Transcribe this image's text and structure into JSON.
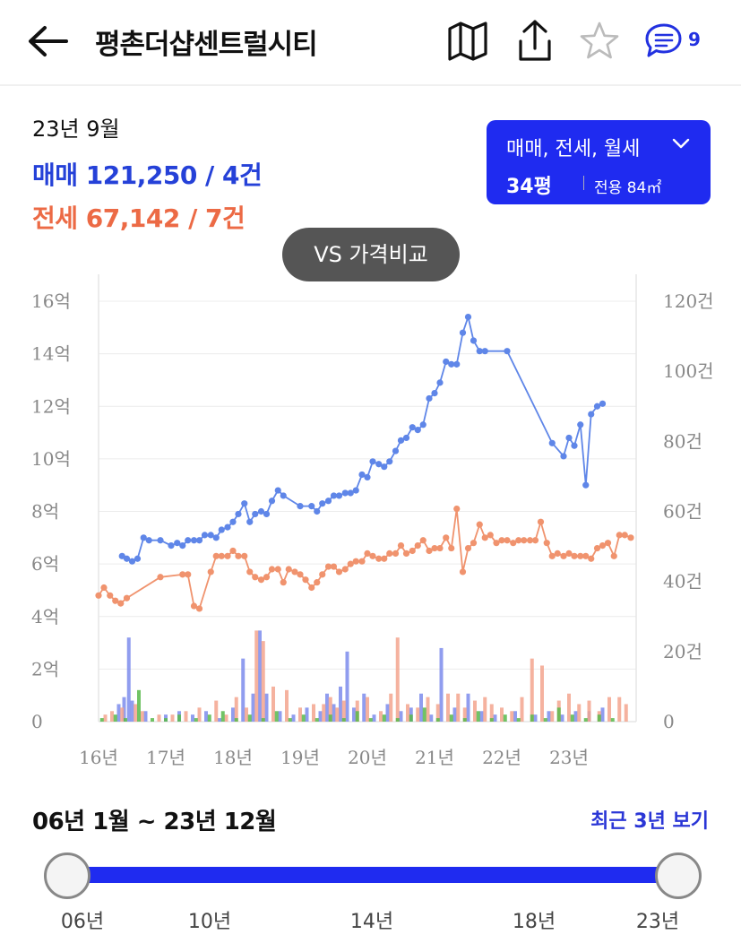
{
  "header": {
    "title": "평촌더샵센트럴시티",
    "comment_count": "9"
  },
  "summary": {
    "period": "23년 9월",
    "sale": "매매 121,250 / 4건",
    "jeonse": "전세 67,142 / 7건"
  },
  "type_selector": {
    "types": "매매, 전세, 월세",
    "pyeong": "34평",
    "area": "전용 84㎡"
  },
  "compare_button": "VS 가격비교",
  "range": {
    "label": "06년 1월 ~ 23년 12월",
    "recent_link": "최근 3년 보기",
    "ticks": [
      "06년",
      "10년",
      "14년",
      "18년",
      "23년"
    ]
  },
  "colors": {
    "sale": "#5f86e8",
    "jeonse": "#f0936e",
    "accent": "#1f2bf0"
  },
  "chart_data": {
    "type": "line",
    "xlim": [
      2016,
      2024
    ],
    "x_ticks": [
      {
        "value": 2016,
        "label": "16년"
      },
      {
        "value": 2017,
        "label": "17년"
      },
      {
        "value": 2018,
        "label": "18년"
      },
      {
        "value": 2019,
        "label": "19년"
      },
      {
        "value": 2020,
        "label": "20년"
      },
      {
        "value": 2021,
        "label": "21년"
      },
      {
        "value": 2022,
        "label": "22년"
      },
      {
        "value": 2023,
        "label": "23년"
      }
    ],
    "y_left": {
      "range": [
        0,
        16
      ],
      "ticks": [
        0,
        2,
        4,
        6,
        8,
        10,
        12,
        14,
        16
      ],
      "labels": [
        "0",
        "2억",
        "4억",
        "6억",
        "8억",
        "10억",
        "12억",
        "14억",
        "16억"
      ]
    },
    "y_right": {
      "range": [
        0,
        120
      ],
      "ticks": [
        0,
        20,
        40,
        60,
        80,
        100,
        120
      ],
      "labels": [
        "0",
        "20건",
        "40건",
        "60건",
        "80건",
        "100건",
        "120건"
      ]
    },
    "grid": true,
    "series": [
      {
        "key": "sale",
        "x": [
          2016.35,
          2016.42,
          2016.5,
          2016.58,
          2016.67,
          2016.75,
          2016.92,
          2017.08,
          2017.17,
          2017.25,
          2017.33,
          2017.42,
          2017.5,
          2017.58,
          2017.67,
          2017.75,
          2017.83,
          2017.92,
          2018.0,
          2018.08,
          2018.17,
          2018.25,
          2018.33,
          2018.42,
          2018.5,
          2018.58,
          2018.67,
          2018.75,
          2019.0,
          2019.17,
          2019.25,
          2019.33,
          2019.42,
          2019.5,
          2019.58,
          2019.67,
          2019.75,
          2019.83,
          2019.92,
          2020.0,
          2020.08,
          2020.17,
          2020.25,
          2020.33,
          2020.42,
          2020.5,
          2020.58,
          2020.67,
          2020.75,
          2020.83,
          2020.92,
          2021.0,
          2021.08,
          2021.17,
          2021.25,
          2021.33,
          2021.42,
          2021.5,
          2021.58,
          2021.67,
          2021.75,
          2022.08,
          2022.75,
          2022.92,
          2023.0,
          2023.08,
          2023.17,
          2023.25,
          2023.33,
          2023.42,
          2023.5
        ],
        "values": [
          6.3,
          6.2,
          6.1,
          6.2,
          7.0,
          6.9,
          6.9,
          6.7,
          6.8,
          6.7,
          6.9,
          6.9,
          6.9,
          7.1,
          7.1,
          7.0,
          7.3,
          7.4,
          7.6,
          7.9,
          8.3,
          7.6,
          7.9,
          8.0,
          7.9,
          8.4,
          8.8,
          8.6,
          8.2,
          8.2,
          8.0,
          8.3,
          8.4,
          8.6,
          8.6,
          8.7,
          8.7,
          8.8,
          9.4,
          9.3,
          9.9,
          9.8,
          9.7,
          9.9,
          10.3,
          10.7,
          10.8,
          11.2,
          11.1,
          11.3,
          12.3,
          12.5,
          12.9,
          13.7,
          13.6,
          13.6,
          14.8,
          15.4,
          14.5,
          14.1,
          14.1,
          14.1,
          10.6,
          10.1,
          10.8,
          10.5,
          11.3,
          9.0,
          11.7,
          12.0,
          12.1
        ]
      },
      {
        "key": "jeonse",
        "x": [
          2016.0,
          2016.08,
          2016.17,
          2016.25,
          2016.33,
          2016.42,
          2016.92,
          2017.25,
          2017.33,
          2017.42,
          2017.5,
          2017.67,
          2017.75,
          2017.83,
          2017.92,
          2018.0,
          2018.08,
          2018.17,
          2018.25,
          2018.33,
          2018.42,
          2018.5,
          2018.58,
          2018.67,
          2018.75,
          2018.83,
          2018.92,
          2019.0,
          2019.08,
          2019.17,
          2019.25,
          2019.33,
          2019.42,
          2019.5,
          2019.58,
          2019.67,
          2019.75,
          2019.83,
          2019.92,
          2020.0,
          2020.08,
          2020.17,
          2020.25,
          2020.33,
          2020.42,
          2020.5,
          2020.58,
          2020.67,
          2020.75,
          2020.83,
          2020.92,
          2021.0,
          2021.08,
          2021.17,
          2021.25,
          2021.33,
          2021.42,
          2021.5,
          2021.58,
          2021.67,
          2021.75,
          2021.83,
          2021.92,
          2022.0,
          2022.08,
          2022.17,
          2022.25,
          2022.33,
          2022.42,
          2022.5,
          2022.58,
          2022.67,
          2022.75,
          2022.83,
          2022.92,
          2023.0,
          2023.08,
          2023.17,
          2023.25,
          2023.33,
          2023.42,
          2023.5,
          2023.58,
          2023.67,
          2023.75,
          2023.83,
          2023.92
        ],
        "values": [
          4.8,
          5.1,
          4.8,
          4.6,
          4.5,
          4.7,
          5.5,
          5.6,
          5.6,
          4.4,
          4.3,
          5.7,
          6.3,
          6.3,
          6.3,
          6.5,
          6.3,
          6.3,
          5.7,
          5.5,
          5.4,
          5.5,
          5.8,
          5.8,
          5.3,
          5.8,
          5.7,
          5.6,
          5.4,
          5.1,
          5.3,
          5.6,
          5.9,
          5.9,
          5.7,
          5.8,
          6.0,
          6.1,
          6.1,
          6.4,
          6.3,
          6.2,
          6.2,
          6.4,
          6.4,
          6.7,
          6.4,
          6.5,
          6.7,
          6.9,
          6.5,
          6.6,
          6.6,
          7.0,
          6.6,
          8.1,
          5.7,
          6.6,
          6.8,
          7.5,
          7.0,
          7.1,
          6.8,
          6.9,
          6.9,
          6.8,
          6.9,
          6.9,
          6.9,
          6.9,
          7.6,
          6.8,
          6.3,
          6.4,
          6.3,
          6.4,
          6.3,
          6.3,
          6.3,
          6.2,
          6.6,
          6.7,
          6.8,
          6.3,
          7.1,
          7.1,
          7.0
        ]
      }
    ],
    "volume": {
      "series": [
        {
          "key": "sale",
          "x": [
            2016.3,
            2016.38,
            2016.45,
            2016.5,
            2016.7,
            2017.0,
            2017.2,
            2017.4,
            2017.6,
            2017.8,
            2018.0,
            2018.15,
            2018.3,
            2018.4,
            2018.5,
            2018.7,
            2018.9,
            2019.1,
            2019.3,
            2019.4,
            2019.5,
            2019.6,
            2019.7,
            2019.8,
            2019.95,
            2020.1,
            2020.3,
            2020.5,
            2020.65,
            2020.8,
            2020.95,
            2021.1,
            2021.3,
            2021.5,
            2021.7,
            2021.9,
            2022.2,
            2022.5,
            2022.7,
            2022.9,
            2023.1,
            2023.3,
            2023.5
          ],
          "values": [
            5,
            7,
            24,
            6,
            3,
            2,
            3,
            2,
            3,
            1,
            4,
            18,
            8,
            26,
            8,
            3,
            2,
            4,
            3,
            8,
            5,
            10,
            20,
            4,
            8,
            2,
            5,
            3,
            4,
            8,
            2,
            21,
            4,
            8,
            3,
            2,
            3,
            2,
            3,
            2,
            3,
            3,
            4
          ]
        },
        {
          "key": "jeonse",
          "x": [
            2016.1,
            2016.2,
            2016.35,
            2016.55,
            2016.65,
            2016.9,
            2017.1,
            2017.3,
            2017.5,
            2017.75,
            2017.9,
            2018.05,
            2018.2,
            2018.35,
            2018.45,
            2018.6,
            2018.8,
            2019.0,
            2019.2,
            2019.35,
            2019.45,
            2019.55,
            2019.65,
            2019.85,
            2020.0,
            2020.2,
            2020.35,
            2020.45,
            2020.6,
            2020.75,
            2020.9,
            2021.05,
            2021.2,
            2021.35,
            2021.45,
            2021.6,
            2021.75,
            2021.85,
            2022.0,
            2022.15,
            2022.3,
            2022.45,
            2022.6,
            2022.75,
            2022.85,
            2023.0,
            2023.15,
            2023.3,
            2023.45,
            2023.6,
            2023.75,
            2023.85
          ],
          "values": [
            2,
            3,
            4,
            5,
            3,
            2,
            2,
            3,
            4,
            6,
            2,
            7,
            4,
            26,
            23,
            10,
            9,
            4,
            5,
            5,
            7,
            4,
            6,
            6,
            7,
            3,
            8,
            24,
            5,
            4,
            7,
            5,
            8,
            8,
            4,
            6,
            7,
            5,
            4,
            3,
            7,
            18,
            16,
            3,
            6,
            8,
            5,
            6,
            3,
            7,
            7,
            5
          ]
        },
        {
          "key": "count",
          "x": [
            2016.05,
            2016.25,
            2016.4,
            2016.6,
            2016.8,
            2017.0,
            2017.2,
            2017.45,
            2017.65,
            2017.85,
            2018.05,
            2018.25,
            2018.45,
            2018.65,
            2018.85,
            2019.05,
            2019.25,
            2019.45,
            2019.65,
            2019.85,
            2020.05,
            2020.25,
            2020.45,
            2020.65,
            2020.85,
            2021.05,
            2021.25,
            2021.45,
            2021.65,
            2021.85,
            2022.05,
            2022.25,
            2022.45,
            2022.65,
            2022.85,
            2023.05,
            2023.25,
            2023.45,
            2023.65
          ],
          "values": [
            1,
            2,
            1,
            9,
            1,
            1,
            2,
            1,
            2,
            3,
            1,
            2,
            1,
            3,
            1,
            2,
            1,
            2,
            1,
            3,
            1,
            2,
            1,
            2,
            4,
            1,
            2,
            1,
            3,
            1,
            2,
            1,
            2,
            1,
            4,
            2,
            1,
            2,
            1
          ]
        }
      ]
    }
  }
}
